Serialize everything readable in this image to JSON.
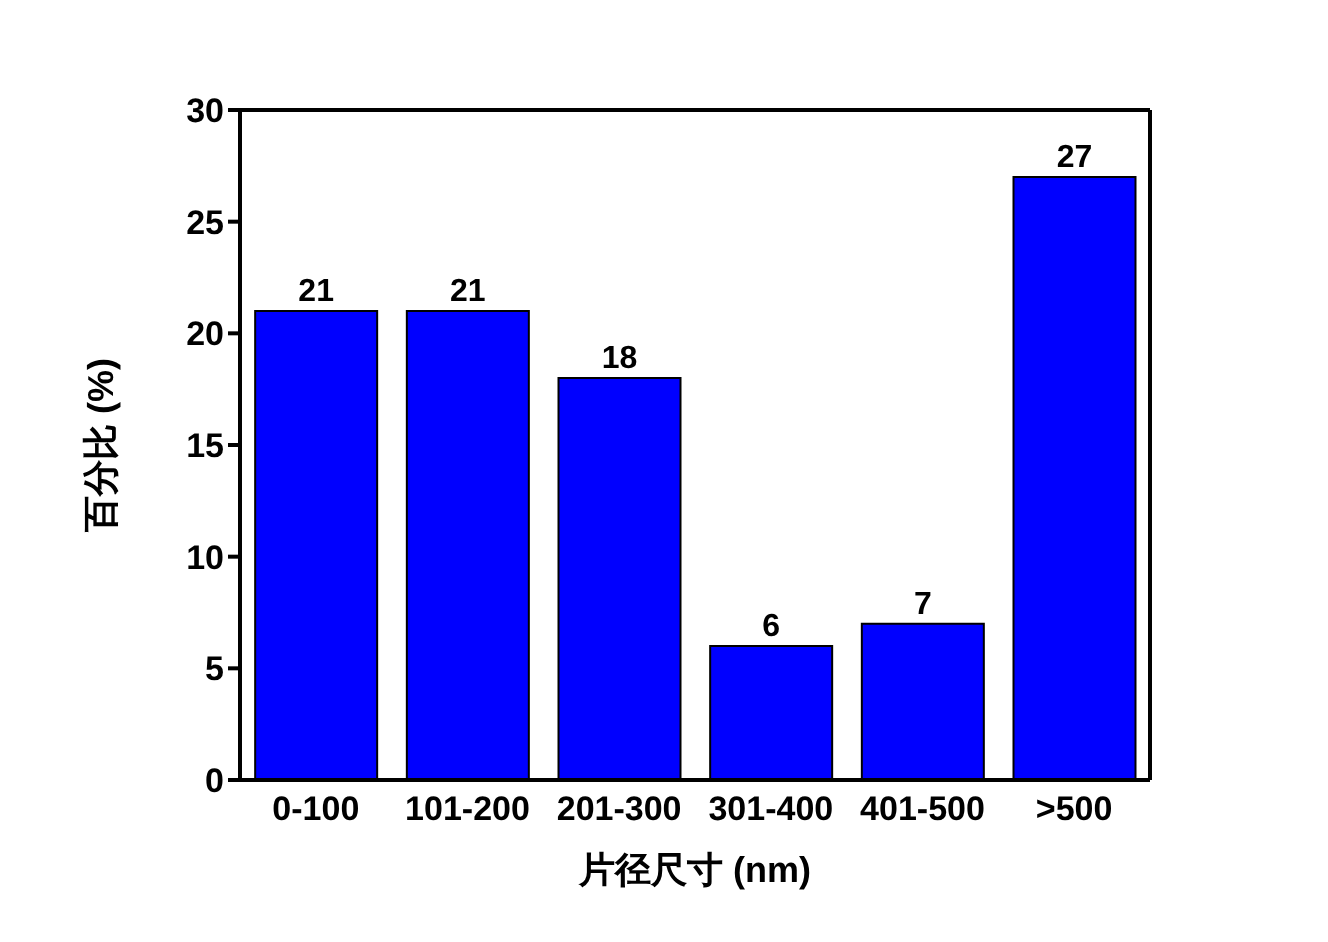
{
  "chart_data": {
    "type": "bar",
    "xlabel": "片径尺寸 (nm)",
    "ylabel": "百分比 (%)",
    "categories": [
      "0-100",
      "101-200",
      "201-300",
      "301-400",
      "401-500",
      ">500"
    ],
    "values": [
      21,
      21,
      18,
      6,
      7,
      27
    ],
    "color": "#0000ff",
    "ylim": [
      0,
      30
    ],
    "yticks": [
      0,
      5,
      10,
      15,
      20,
      25,
      30
    ],
    "data_labels": true
  }
}
